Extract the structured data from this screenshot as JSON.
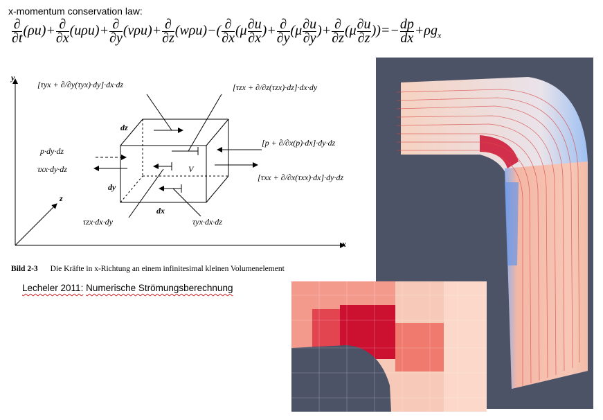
{
  "heading": "x-momentum conservation law:",
  "equation": {
    "term_t": {
      "num": "∂",
      "den": "∂t",
      "body": "(ρu)"
    },
    "term_x": {
      "num": "∂",
      "den": "∂x",
      "body": "(uρu)"
    },
    "term_y": {
      "num": "∂",
      "den": "∂y",
      "body": "(vρu)"
    },
    "term_z": {
      "num": "∂",
      "den": "∂z",
      "body": "(wρu)"
    },
    "visc_x": {
      "num": "∂",
      "den": "∂x",
      "inner_num": "∂u",
      "inner_den": "∂x"
    },
    "visc_y": {
      "num": "∂",
      "den": "∂y",
      "inner_num": "∂u",
      "inner_den": "∂y"
    },
    "visc_z": {
      "num": "∂",
      "den": "∂z",
      "inner_num": "∂u",
      "inner_den": "∂z"
    },
    "mu": "μ",
    "pressure": {
      "num": "dp",
      "den": "dx"
    },
    "gravity": "ρg",
    "gravity_sub": "x"
  },
  "diagram": {
    "axis_x": "x",
    "axis_y": "y",
    "axis_z": "z",
    "label_dz": "dz",
    "label_dy": "dy",
    "label_dx": "dx",
    "label_V": "V",
    "left_p": "p·dy·dz",
    "left_tau": "τxx·dy·dz",
    "top_left_expr": "[τyx + ∂/∂y(τyx)·dy]·dx·dz",
    "top_right_expr": "[τzx + ∂/∂z(τzx)·dz]·dx·dy",
    "right_p_expr": "[p + ∂/∂x(p)·dx]·dy·dz",
    "right_tau_expr": "[τxx + ∂/∂x(τxx)·dx]·dy·dz",
    "bottom_zx": "τzx·dx·dy",
    "bottom_yx": "τyx·dx·dz"
  },
  "caption": {
    "label": "Bild 2-3",
    "text": "Die Kräfte in x-Richtung an einem infinitesimal kleinen Volumenelement"
  },
  "reference": {
    "author_year": "Lecheler 2011:",
    "title": "Numerische Strömungsberechnung"
  },
  "colors": {
    "background": "#4d5366",
    "flow_pale": "#f4c7b6",
    "flow_hot": "#cc1030",
    "flow_cold": "#6a95e6",
    "streamline": "#d84a48"
  }
}
